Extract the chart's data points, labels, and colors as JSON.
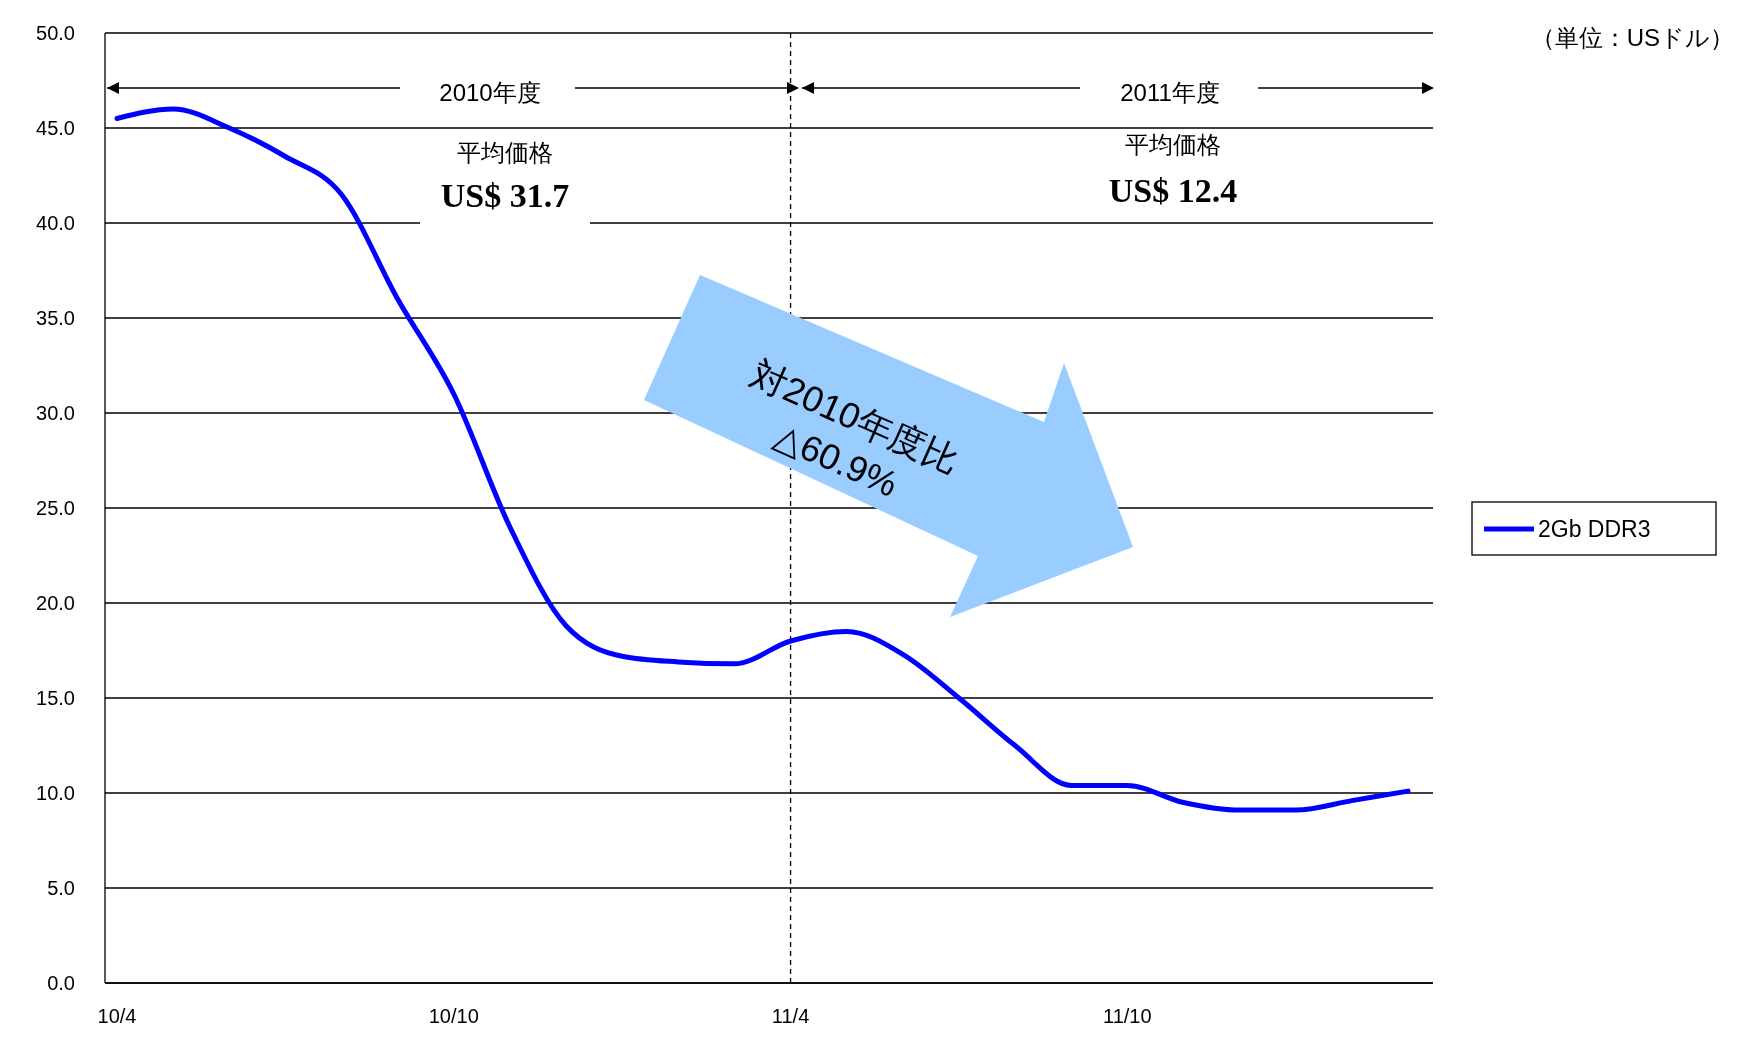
{
  "chart_data": {
    "type": "line",
    "categories": [
      "10/4",
      null,
      null,
      null,
      null,
      null,
      "10/10",
      null,
      null,
      null,
      null,
      null,
      "11/4",
      null,
      null,
      null,
      null,
      null,
      "11/10",
      null,
      null,
      null,
      null,
      null
    ],
    "series": [
      {
        "name": "2Gb DDR3",
        "color": "#0000ff",
        "values": [
          45.5,
          46.0,
          45.0,
          43.5,
          41.5,
          36.0,
          31.0,
          24.0,
          18.8,
          17.2,
          16.9,
          16.8,
          18.0,
          18.5,
          17.3,
          15.0,
          12.5,
          10.4,
          10.4,
          9.5,
          9.1,
          9.1,
          9.6,
          10.1
        ]
      }
    ],
    "ylim": [
      0,
      50
    ],
    "yticks": [
      {
        "value": 0,
        "label": "0.0"
      },
      {
        "value": 5,
        "label": "5.0"
      },
      {
        "value": 10,
        "label": "10.0"
      },
      {
        "value": 15,
        "label": "15.0"
      },
      {
        "value": 20,
        "label": "20.0"
      },
      {
        "value": 25,
        "label": "25.0"
      },
      {
        "value": 30,
        "label": "30.0"
      },
      {
        "value": 35,
        "label": "35.0"
      },
      {
        "value": 40,
        "label": "40.0"
      },
      {
        "value": 45,
        "label": "45.0"
      },
      {
        "value": 50,
        "label": "50.0"
      }
    ],
    "grid": "y",
    "legend": "right",
    "marker": "none",
    "line_style": "solid",
    "ref_lines": [
      {
        "axis": "x",
        "value": "11/4",
        "line_style": "dashed",
        "color": "#000000"
      }
    ],
    "annotations": [
      "（単位：USドル）",
      "2010年度",
      "平均価格",
      "US$ 31.7",
      "2011年度",
      "平均価格",
      "US$ 12.4",
      "対2010年度比",
      "△60.9%"
    ]
  }
}
